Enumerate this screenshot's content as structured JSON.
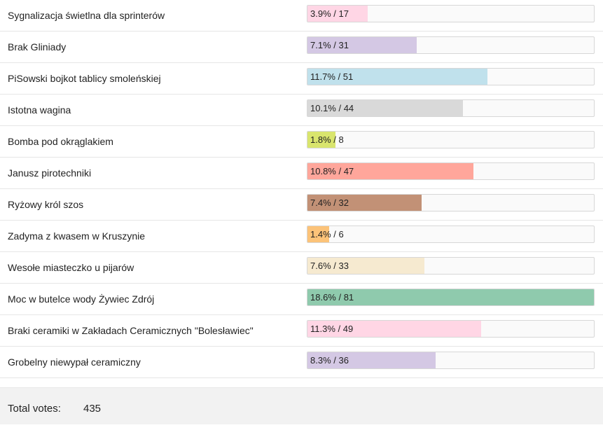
{
  "options": [
    {
      "label": "Sygnalizacja świetlna dla sprinterów",
      "result": "3.9% / 17",
      "fraction": 0.039,
      "color": "#ffd6e5"
    },
    {
      "label": "Brak Gliniady",
      "result": "7.1% / 31",
      "fraction": 0.071,
      "color": "#d4c8e4"
    },
    {
      "label": "PiSowski bojkot tablicy smoleńskiej",
      "result": "11.7% / 51",
      "fraction": 0.117,
      "color": "#c0e1ec"
    },
    {
      "label": "Istotna wagina",
      "result": "10.1% / 44",
      "fraction": 0.101,
      "color": "#d9d9d9"
    },
    {
      "label": "Bomba pod okrąglakiem",
      "result": "1.8% / 8",
      "fraction": 0.018,
      "color": "#d9e56d"
    },
    {
      "label": "Janusz pirotechniki",
      "result": "10.8% / 47",
      "fraction": 0.108,
      "color": "#ffa69b"
    },
    {
      "label": "Ryżowy król szos",
      "result": "7.4% / 32",
      "fraction": 0.074,
      "color": "#c29176"
    },
    {
      "label": "Zadyma z kwasem w Kruszynie",
      "result": "1.4% / 6",
      "fraction": 0.014,
      "color": "#fcc379"
    },
    {
      "label": "Wesołe miasteczko u pijarów",
      "result": "7.6% / 33",
      "fraction": 0.076,
      "color": "#f6ead0"
    },
    {
      "label": "Moc w butelce wody Żywiec Zdrój",
      "result": "18.6% / 81",
      "fraction": 0.186,
      "color": "#8fcaad"
    },
    {
      "label": "Braki ceramiki w Zakładach Ceramicznych \"Bolesławiec\"",
      "result": "11.3% / 49",
      "fraction": 0.113,
      "color": "#ffd6e5"
    },
    {
      "label": "Grobelny niewypał ceramiczny",
      "result": "8.3% / 36",
      "fraction": 0.083,
      "color": "#d4c8e4"
    }
  ],
  "max_fraction": 0.186,
  "footer": {
    "total_label": "Total votes:",
    "total_value": "435"
  }
}
